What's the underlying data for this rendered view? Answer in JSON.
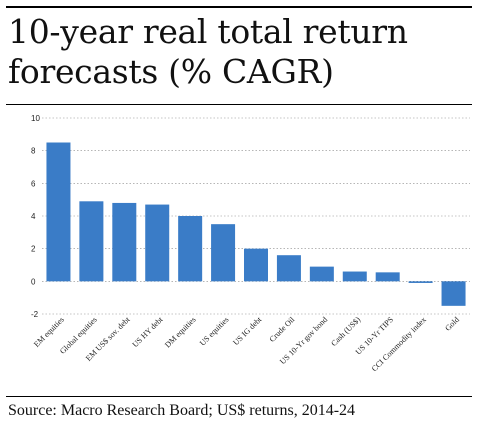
{
  "title": "10-year real total return forecasts (% CAGR)",
  "source": "Source: Macro Research Board; US$ returns, 2014-24",
  "chart_data": {
    "type": "bar",
    "title": "10-year real total return forecasts (% CAGR)",
    "xlabel": "",
    "ylabel": "",
    "ylim": [
      -2,
      10
    ],
    "yticks": [
      "-2",
      "0",
      "2",
      "4",
      "6",
      "8",
      "10"
    ],
    "grid": true,
    "bar_color": "#3a7cc7",
    "categories": [
      "EM equities",
      "Global equities",
      "EM US$ sov. debt",
      "US HY debt",
      "DM equities",
      "US equities",
      "US IG debt",
      "Crude Oil",
      "US 10-Yr gov bond",
      "Cash (US$)",
      "US 10-Yr TIPS",
      "CCI Commodity index",
      "Gold"
    ],
    "values": [
      8.5,
      4.9,
      4.8,
      4.7,
      4.0,
      3.5,
      2.0,
      1.6,
      0.9,
      0.6,
      0.55,
      -0.1,
      -1.5
    ]
  }
}
